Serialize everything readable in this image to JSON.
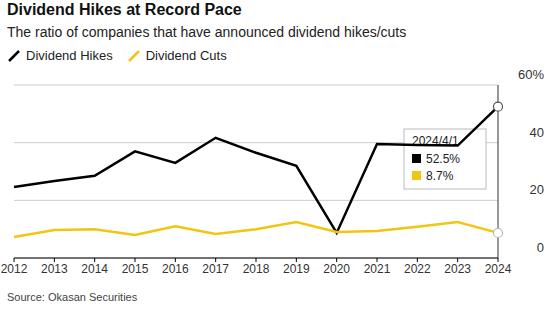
{
  "chart_data": {
    "type": "line",
    "title": "Dividend Hikes at Record Pace",
    "subtitle": "The ratio of companies that have announced dividend hikes/cuts",
    "source": "Source: Okasan Securities",
    "categories": [
      "2012",
      "2013",
      "2014",
      "2015",
      "2016",
      "2017",
      "2018",
      "2019",
      "2020",
      "2021",
      "2022",
      "2023",
      "2024"
    ],
    "series": [
      {
        "name": "Dividend Hikes",
        "color": "#000000",
        "values": [
          24.6,
          26.7,
          28.5,
          37,
          33,
          41.7,
          36.5,
          32,
          8.7,
          39.5,
          39.2,
          39,
          52.5
        ],
        "value_labels": [
          null,
          null,
          null,
          null,
          null,
          null,
          null,
          null,
          null,
          null,
          null,
          null,
          "52.5%"
        ]
      },
      {
        "name": "Dividend Cuts",
        "color": "#f2c511",
        "values": [
          7.3,
          9.7,
          10,
          8,
          11,
          8.3,
          10,
          12.5,
          9,
          9.4,
          10.8,
          12.5,
          8.7
        ],
        "value_labels": [
          null,
          null,
          null,
          null,
          null,
          null,
          null,
          null,
          null,
          null,
          null,
          null,
          "8.7%"
        ]
      }
    ],
    "annotation": "2024/4/1",
    "ylim": [
      0,
      60
    ],
    "yticks": [
      0,
      20,
      40,
      {
        "value": 60,
        "label": "60%"
      }
    ],
    "grid": true,
    "legend": "top left"
  }
}
